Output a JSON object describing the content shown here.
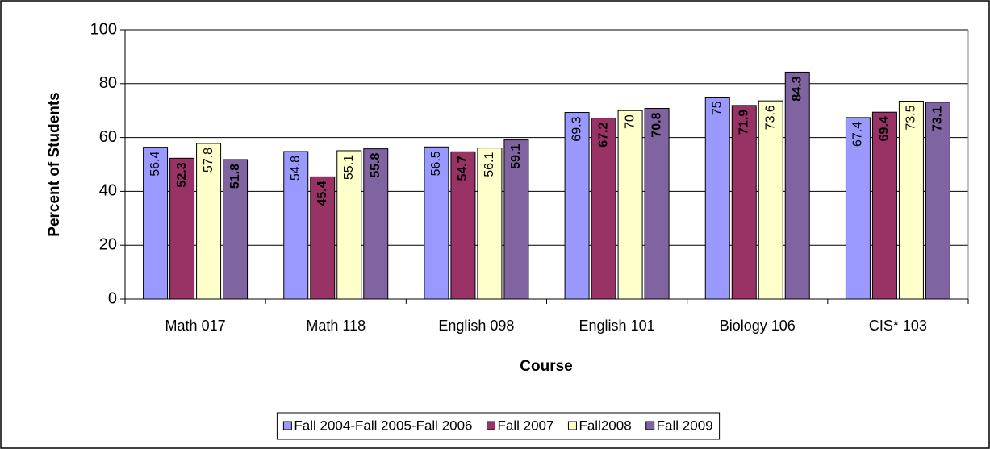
{
  "chart_data": {
    "type": "bar",
    "x_label": "Course",
    "y_label": "Percent of Students",
    "categories": [
      "Math 017",
      "Math 118",
      "English 098",
      "English 101",
      "Biology 106",
      "CIS* 103"
    ],
    "series": [
      {
        "name": "Fall 2004-Fall 2005-Fall 2006",
        "color": "#9999FF",
        "label_color": "#000000",
        "label_bold": false,
        "values": [
          56.4,
          54.8,
          56.5,
          69.3,
          75,
          67.4
        ]
      },
      {
        "name": "Fall 2007",
        "color": "#993366",
        "label_color": "#FFFFFF",
        "label_bold": true,
        "values": [
          52.3,
          45.4,
          54.7,
          67.2,
          71.9,
          69.4
        ]
      },
      {
        "name": "Fall2008",
        "color": "#FFFFCC",
        "label_color": "#000000",
        "label_bold": false,
        "values": [
          57.8,
          55.1,
          56.1,
          70,
          73.6,
          73.5
        ]
      },
      {
        "name": "Fall 2009",
        "color": "#8064A2",
        "label_color": "#FFFFFF",
        "label_bold": true,
        "values": [
          51.8,
          55.8,
          59.1,
          70.8,
          84.3,
          73.1
        ]
      }
    ],
    "ylim": [
      0,
      100
    ],
    "yticks": [
      0,
      20,
      40,
      60,
      80,
      100
    ],
    "grid": true,
    "legend": "bottom"
  }
}
